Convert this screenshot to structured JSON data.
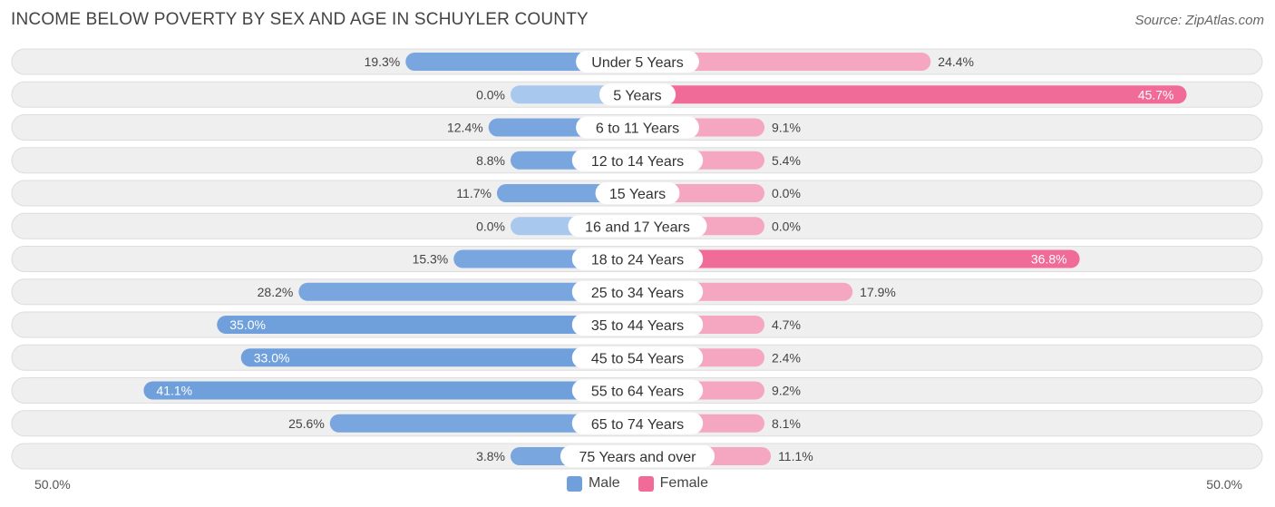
{
  "title": "INCOME BELOW POVERTY BY SEX AND AGE IN SCHUYLER COUNTY",
  "source": "Source: ZipAtlas.com",
  "colors": {
    "male": "#6fa0dc",
    "male_light": "#a9c8ee",
    "female": "#f06b97",
    "female_light": "#f5a6c0",
    "row_bg": "#efefef",
    "row_border": "#dddddd"
  },
  "axis": {
    "left_label": "50.0%",
    "right_label": "50.0%"
  },
  "legend": {
    "male": "Male",
    "female": "Female"
  },
  "chart_data": {
    "type": "bar",
    "orientation": "horizontal-diverging",
    "title": "INCOME BELOW POVERTY BY SEX AND AGE IN SCHUYLER COUNTY",
    "xlim": [
      -50,
      50
    ],
    "categories": [
      "Under 5 Years",
      "5 Years",
      "6 to 11 Years",
      "12 to 14 Years",
      "15 Years",
      "16 and 17 Years",
      "18 to 24 Years",
      "25 to 34 Years",
      "35 to 44 Years",
      "45 to 54 Years",
      "55 to 64 Years",
      "65 to 74 Years",
      "75 Years and over"
    ],
    "series": [
      {
        "name": "Male",
        "values": [
          19.3,
          0.0,
          12.4,
          8.8,
          11.7,
          0.0,
          15.3,
          28.2,
          35.0,
          33.0,
          41.1,
          25.6,
          3.8
        ],
        "labels": [
          "19.3%",
          "0.0%",
          "12.4%",
          "8.8%",
          "11.7%",
          "0.0%",
          "15.3%",
          "28.2%",
          "35.0%",
          "33.0%",
          "41.1%",
          "25.6%",
          "3.8%"
        ]
      },
      {
        "name": "Female",
        "values": [
          24.4,
          45.7,
          9.1,
          5.4,
          0.0,
          0.0,
          36.8,
          17.9,
          4.7,
          2.4,
          9.2,
          8.1,
          11.1
        ],
        "labels": [
          "24.4%",
          "45.7%",
          "9.1%",
          "5.4%",
          "0.0%",
          "0.0%",
          "36.8%",
          "17.9%",
          "4.7%",
          "2.4%",
          "9.2%",
          "8.1%",
          "11.1%"
        ]
      }
    ]
  }
}
